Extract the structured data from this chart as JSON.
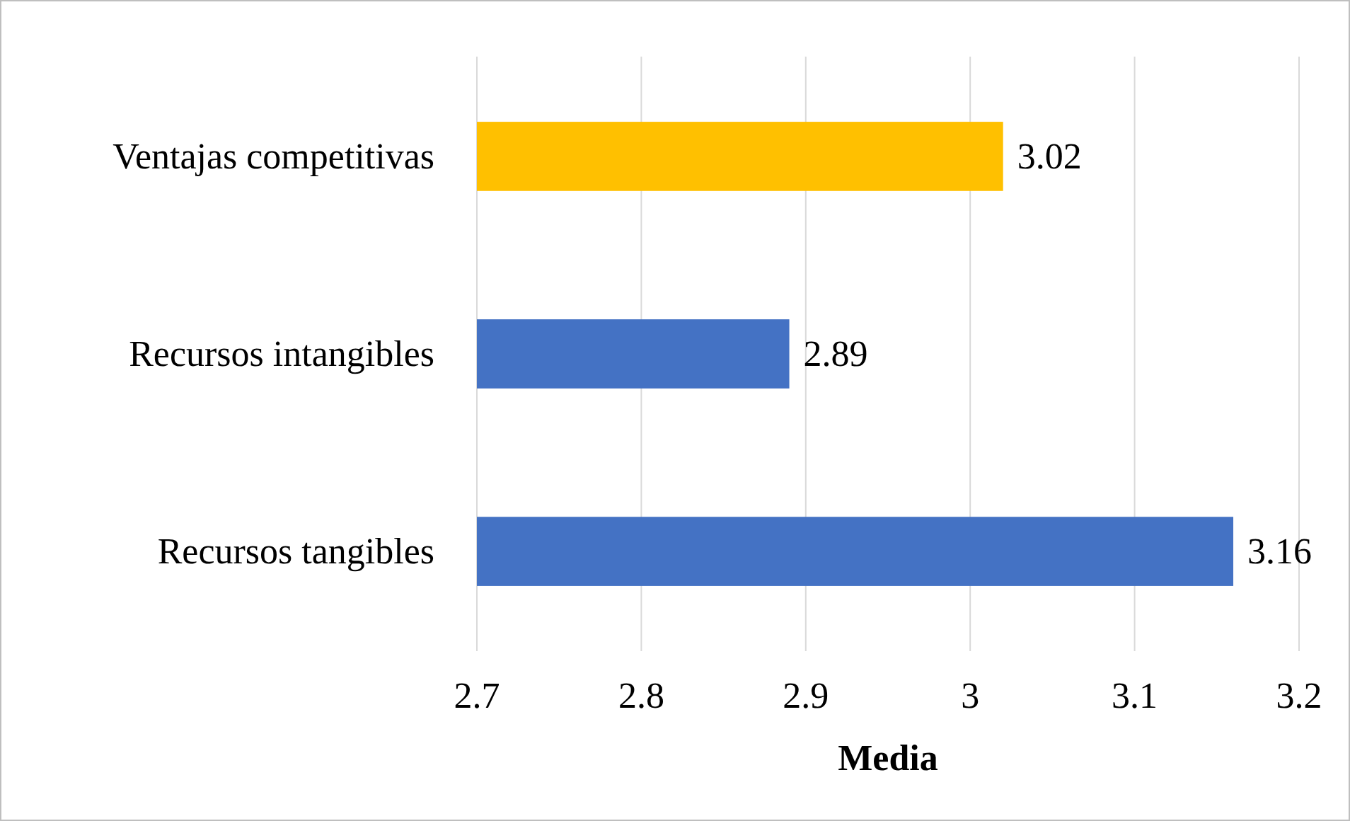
{
  "chart_data": {
    "type": "bar",
    "orientation": "horizontal",
    "xlabel": "Media",
    "categories": [
      "Ventajas competitivas",
      "Recursos intangibles",
      "Recursos tangibles"
    ],
    "values": [
      3.02,
      2.89,
      3.16
    ],
    "colors": [
      "#ffc000",
      "#4472c4",
      "#4472c4"
    ],
    "xlim": [
      2.7,
      3.2
    ],
    "xticks": [
      2.7,
      2.8,
      2.9,
      3,
      3.1,
      3.2
    ],
    "grid": "x",
    "data_labels": true
  }
}
